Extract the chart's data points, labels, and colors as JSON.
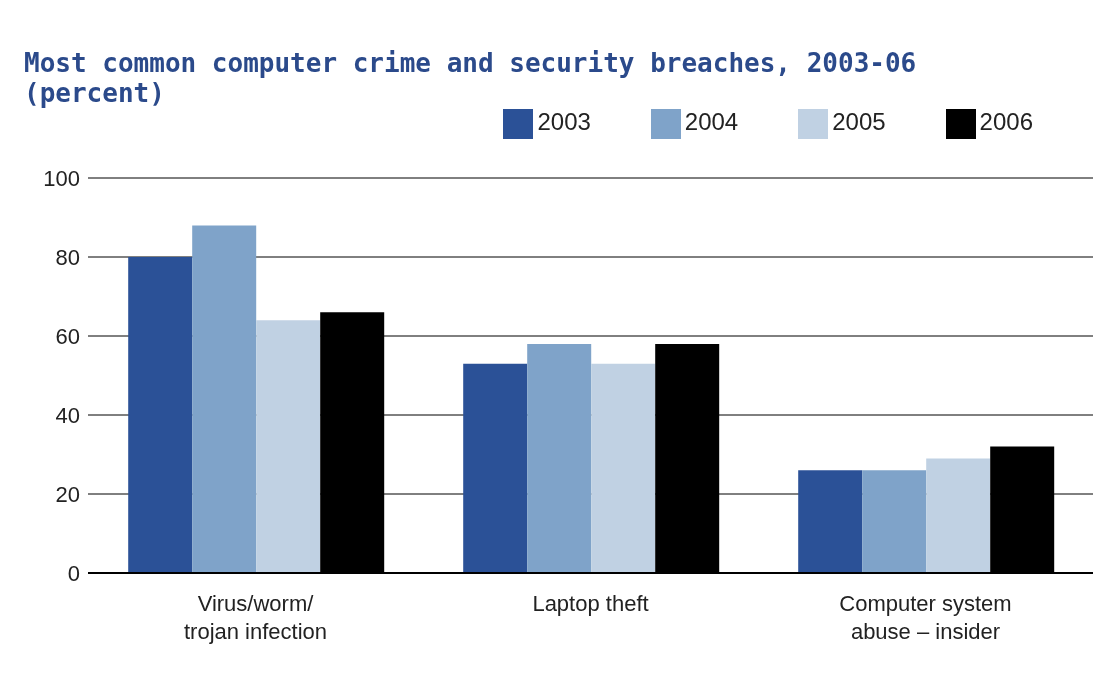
{
  "chart_data": {
    "type": "bar",
    "title": "Most common computer crime and security breaches, 2003-06",
    "subtitle": "(percent)",
    "categories": [
      "Virus/worm/ trojan infection",
      "Laptop theft",
      "Computer system abuse – insider"
    ],
    "series": [
      {
        "name": "2003",
        "color": "#2b5197",
        "values": [
          80,
          53,
          26
        ]
      },
      {
        "name": "2004",
        "color": "#7fa3c9",
        "values": [
          88,
          58,
          26
        ]
      },
      {
        "name": "2005",
        "color": "#c0d1e3",
        "values": [
          64,
          53,
          29
        ]
      },
      {
        "name": "2006",
        "color": "#000000",
        "values": [
          66,
          58,
          32
        ]
      }
    ],
    "ylim": [
      0,
      100
    ],
    "yticks": [
      0,
      20,
      40,
      60,
      80,
      100
    ],
    "grid": "y",
    "legend": "top right"
  }
}
